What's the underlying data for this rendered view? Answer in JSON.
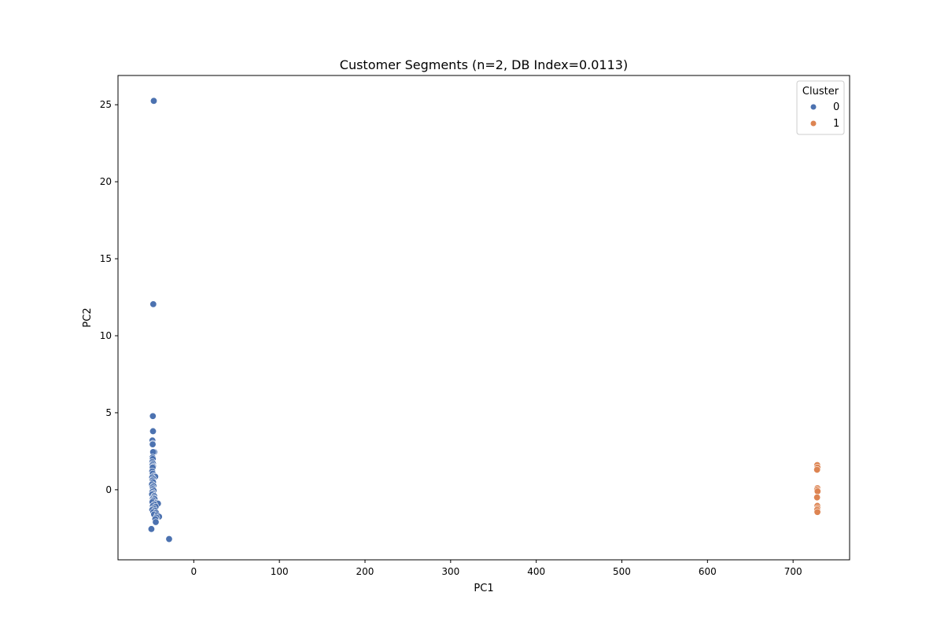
{
  "chart_data": {
    "type": "scatter",
    "title": "Customer Segments (n=2, DB Index=0.0113)",
    "xlabel": "PC1",
    "ylabel": "PC2",
    "xlim": [
      -88.5,
      766
    ],
    "ylim": [
      -4.55,
      26.9
    ],
    "xticks": [
      0,
      100,
      200,
      300,
      400,
      500,
      600,
      700
    ],
    "yticks": [
      0,
      5,
      10,
      15,
      20,
      25
    ],
    "grid": false,
    "legend": {
      "title": "Cluster",
      "placement": "top-right"
    },
    "series": [
      {
        "name": "0",
        "color": "#4c72b0",
        "points": [
          [
            -46.7,
            25.25
          ],
          [
            -47.3,
            12.05
          ],
          [
            -47.8,
            4.78
          ],
          [
            -47.6,
            3.8
          ],
          [
            -48.3,
            3.2
          ],
          [
            -47.9,
            3.0
          ],
          [
            -48.0,
            2.95
          ],
          [
            -46.2,
            2.45
          ],
          [
            -47.5,
            2.45
          ],
          [
            -48.1,
            2.1
          ],
          [
            -47.8,
            2.0
          ],
          [
            -48.4,
            1.8
          ],
          [
            -47.6,
            1.7
          ],
          [
            -48.2,
            1.6
          ],
          [
            -47.4,
            1.5
          ],
          [
            -48.0,
            1.45
          ],
          [
            -48.5,
            1.2
          ],
          [
            -47.9,
            1.05
          ],
          [
            -46.5,
            0.9
          ],
          [
            -45.0,
            0.85
          ],
          [
            -48.6,
            0.8
          ],
          [
            -47.3,
            0.7
          ],
          [
            -48.2,
            0.6
          ],
          [
            -47.5,
            0.5
          ],
          [
            -48.8,
            0.35
          ],
          [
            -47.0,
            0.25
          ],
          [
            -48.1,
            0.15
          ],
          [
            -47.6,
            0.05
          ],
          [
            -46.9,
            -0.05
          ],
          [
            -48.4,
            -0.15
          ],
          [
            -47.7,
            -0.25
          ],
          [
            -48.7,
            -0.3
          ],
          [
            -46.3,
            -0.4
          ],
          [
            -47.2,
            -0.5
          ],
          [
            -48.0,
            -0.6
          ],
          [
            -45.8,
            -0.6
          ],
          [
            -47.5,
            -0.7
          ],
          [
            -48.3,
            -0.8
          ],
          [
            -43.2,
            -0.85
          ],
          [
            -41.8,
            -0.9
          ],
          [
            -46.0,
            -0.95
          ],
          [
            -47.8,
            -1.05
          ],
          [
            -44.5,
            -1.1
          ],
          [
            -47.0,
            -1.2
          ],
          [
            -48.5,
            -1.3
          ],
          [
            -45.5,
            -1.35
          ],
          [
            -47.3,
            -1.45
          ],
          [
            -44.0,
            -1.5
          ],
          [
            -46.4,
            -1.6
          ],
          [
            -42.5,
            -1.65
          ],
          [
            -40.5,
            -1.75
          ],
          [
            -43.6,
            -1.8
          ],
          [
            -45.0,
            -1.9
          ],
          [
            -44.4,
            -2.1
          ],
          [
            -49.5,
            -2.55
          ],
          [
            -28.8,
            -3.2
          ]
        ]
      },
      {
        "name": "1",
        "color": "#dd8452",
        "points": [
          [
            728.2,
            1.6
          ],
          [
            728.5,
            1.45
          ],
          [
            728.0,
            1.3
          ],
          [
            728.4,
            0.1
          ],
          [
            728.1,
            0.0
          ],
          [
            728.6,
            -0.1
          ],
          [
            728.0,
            -0.5
          ],
          [
            728.3,
            -1.05
          ],
          [
            728.5,
            -1.2
          ],
          [
            728.1,
            -1.3
          ],
          [
            728.4,
            -1.45
          ]
        ]
      }
    ]
  }
}
